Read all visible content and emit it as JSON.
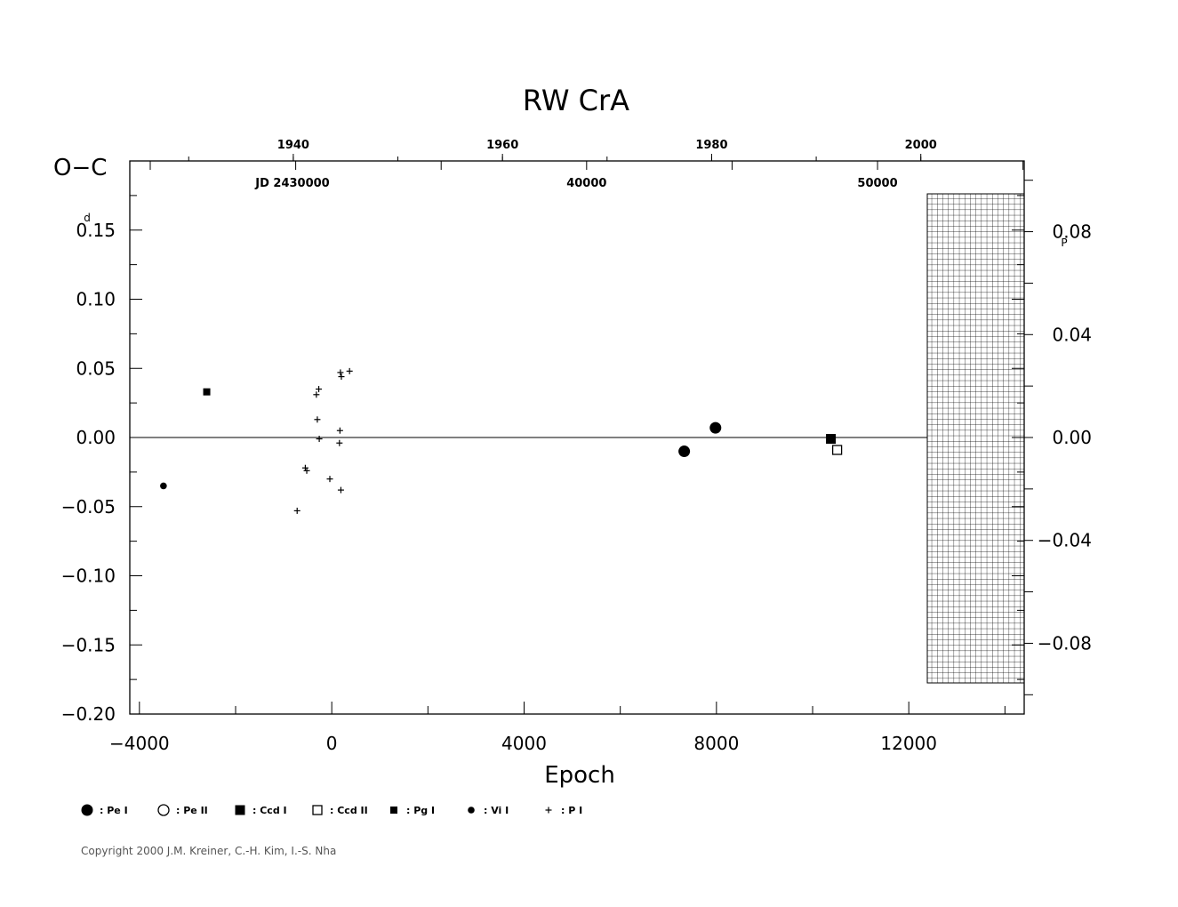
{
  "chart_data": {
    "type": "scatter",
    "title": "RW  CrA",
    "xlabel": "Epoch",
    "ylabel": "O−C",
    "y_unit": "d",
    "y2_unit": "P",
    "xlim": [
      -4200,
      14400
    ],
    "ylim": [
      -0.2,
      0.2
    ],
    "y2lim": [
      -0.1075,
      0.1075
    ],
    "x_ticks": [
      "−4000",
      "0",
      "4000",
      "8000",
      "12000"
    ],
    "x_tick_values": [
      -4000,
      0,
      4000,
      8000,
      12000
    ],
    "y_ticks": [
      "0.15",
      "0.10",
      "0.05",
      "0.00",
      "−0.05",
      "−0.10",
      "−0.15",
      "−0.20"
    ],
    "y_tick_values": [
      0.15,
      0.1,
      0.05,
      0.0,
      -0.05,
      -0.1,
      -0.15,
      -0.2
    ],
    "y2_ticks": [
      "0.08",
      "0.04",
      "0.00",
      "−0.04",
      "−0.08"
    ],
    "y2_tick_values": [
      0.08,
      0.04,
      0.0,
      -0.04,
      -0.08
    ],
    "top_year_ticks": [
      "1940",
      "1960",
      "1980",
      "2000"
    ],
    "top_year_epochs": [
      -800,
      3550,
      7900,
      12250
    ],
    "top_jd_label": "JD  2430000",
    "top_jd_ticks": [
      "40000",
      "50000"
    ],
    "top_jd_epochs": [
      5300,
      11350
    ],
    "hatched_region_x": [
      12200,
      14400
    ],
    "series": [
      {
        "name": ": Pe  I",
        "marker": "filled-circle-large",
        "points": [
          [
            7330,
            -0.01
          ],
          [
            7980,
            0.007
          ]
        ]
      },
      {
        "name": ": Pe  II",
        "marker": "open-circle",
        "points": []
      },
      {
        "name": ": Ccd  I",
        "marker": "filled-square",
        "points": [
          [
            10380,
            -0.001
          ]
        ]
      },
      {
        "name": ": Ccd  II",
        "marker": "open-square",
        "points": [
          [
            10510,
            -0.009
          ]
        ]
      },
      {
        "name": ": Pg  I",
        "marker": "filled-square-small",
        "points": [
          [
            -2600,
            0.033
          ]
        ]
      },
      {
        "name": ": Vi  I",
        "marker": "filled-circle-small",
        "points": [
          [
            -3500,
            -0.035
          ]
        ]
      },
      {
        "name": ": P  I",
        "marker": "plus",
        "points": [
          [
            -270,
            0.035
          ],
          [
            -320,
            0.031
          ],
          [
            -300,
            0.013
          ],
          [
            -260,
            -0.001
          ],
          [
            -550,
            -0.022
          ],
          [
            -520,
            -0.024
          ],
          [
            -40,
            -0.03
          ],
          [
            -720,
            -0.053
          ],
          [
            180,
            0.047
          ],
          [
            200,
            0.044
          ],
          [
            370,
            0.048
          ],
          [
            170,
            0.005
          ],
          [
            160,
            -0.004
          ],
          [
            190,
            -0.038
          ]
        ]
      }
    ]
  },
  "copyright": "Copyright 2000 J.M. Kreiner, C.-H. Kim, I.-S. Nha"
}
